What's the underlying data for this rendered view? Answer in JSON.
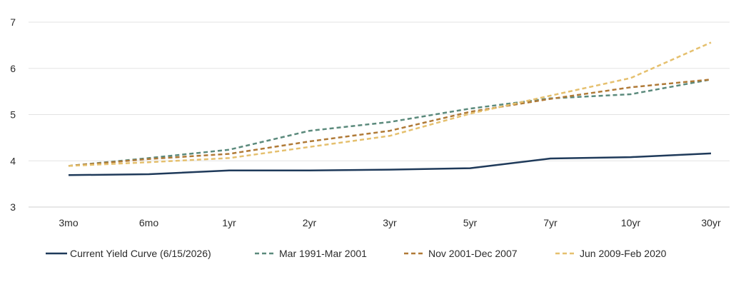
{
  "chart_data": {
    "type": "line",
    "title": "",
    "xlabel": "",
    "ylabel": "",
    "categories": [
      "3mo",
      "6mo",
      "1yr",
      "2yr",
      "3yr",
      "5yr",
      "7yr",
      "10yr",
      "30yr"
    ],
    "ylim": [
      3,
      7
    ],
    "yticks": [
      "3",
      "4",
      "5",
      "6",
      "7"
    ],
    "grid": true,
    "legend_position": "bottom",
    "series": [
      {
        "name": "Current Yield Curve (6/15/2026)",
        "values": [
          3.69,
          3.71,
          3.79,
          3.79,
          3.81,
          3.84,
          4.05,
          4.08,
          4.16
        ],
        "color": "#1f3a5a",
        "style": "solid"
      },
      {
        "name": "Mar 1991-Mar 2001",
        "values": [
          3.89,
          4.06,
          4.24,
          4.65,
          4.84,
          5.13,
          5.35,
          5.44,
          5.76
        ],
        "color": "#5b8a7c",
        "style": "dashed"
      },
      {
        "name": "Nov 2001-Dec 2007",
        "values": [
          3.89,
          4.04,
          4.15,
          4.42,
          4.65,
          5.06,
          5.34,
          5.59,
          5.76
        ],
        "color": "#b07a37",
        "style": "dashed"
      },
      {
        "name": "Jun 2009-Feb 2020",
        "values": [
          3.89,
          3.97,
          4.06,
          4.3,
          4.54,
          5.02,
          5.41,
          5.79,
          6.56
        ],
        "color": "#e5c06e",
        "style": "dashed"
      }
    ]
  }
}
